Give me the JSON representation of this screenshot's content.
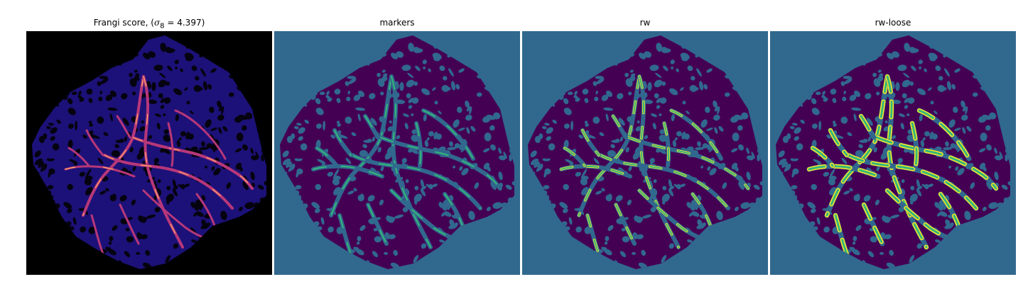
{
  "panels": [
    {
      "id": "frangi",
      "title": "Frangi score, (",
      "title_math": "σ",
      "title_sub": "8",
      "title_rest": " = 4.397)",
      "colormap": "magma",
      "background": "#000000"
    },
    {
      "id": "markers",
      "title": "markers",
      "colormap": "viridis",
      "background": "#31688e"
    },
    {
      "id": "rw",
      "title": "rw",
      "colormap": "viridis",
      "background": "#31688e"
    },
    {
      "id": "rw-loose",
      "title": "rw-loose",
      "colormap": "viridis",
      "background": "#31688e"
    }
  ],
  "colors": {
    "frangi_bg": "#000000",
    "frangi_tissue": "#1c1178",
    "frangi_vessel": "#b73779",
    "frangi_hot": "#fcae67",
    "seg_bg": "#31688e",
    "seg_tissue": "#440154",
    "seg_vessel": "#35b779",
    "seg_edge": "#fde725"
  }
}
